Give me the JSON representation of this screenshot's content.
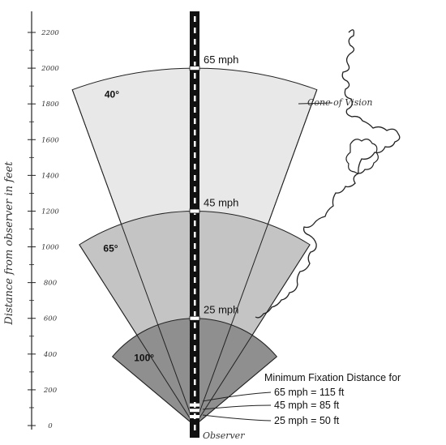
{
  "axis": {
    "label": "Distance from observer in feet",
    "ticks": [
      "0",
      "200",
      "400",
      "600",
      "800",
      "1000",
      "1200",
      "1400",
      "1600",
      "1800",
      "2000",
      "2200"
    ],
    "range": [
      0,
      2200
    ]
  },
  "cones": [
    {
      "angle_label": "40°",
      "angle_deg": 40,
      "radius_ft": 2000,
      "color": "#e8e8e8"
    },
    {
      "angle_label": "65°",
      "angle_deg": 65,
      "radius_ft": 1200,
      "color": "#c4c4c4"
    },
    {
      "angle_label": "100°",
      "angle_deg": 100,
      "radius_ft": 600,
      "color": "#8f8f8f"
    }
  ],
  "speed_markers": [
    {
      "label": "65 mph",
      "distance_ft": 2000
    },
    {
      "label": "45 mph",
      "distance_ft": 1200
    },
    {
      "label": "25 mph",
      "distance_ft": 600
    }
  ],
  "annotations": {
    "cone_of_vision": "Cone of Vision",
    "observer": "Observer"
  },
  "legend": {
    "title": "Minimum Fixation Distance for",
    "items": [
      {
        "text": "65 mph = 115 ft",
        "distance_ft": 115
      },
      {
        "text": "45 mph = 85 ft",
        "distance_ft": 85
      },
      {
        "text": "25 mph = 50 ft",
        "distance_ft": 50
      }
    ]
  },
  "colors": {
    "road": "#111111",
    "road_dash": "#ffffff",
    "ink": "#222222"
  }
}
